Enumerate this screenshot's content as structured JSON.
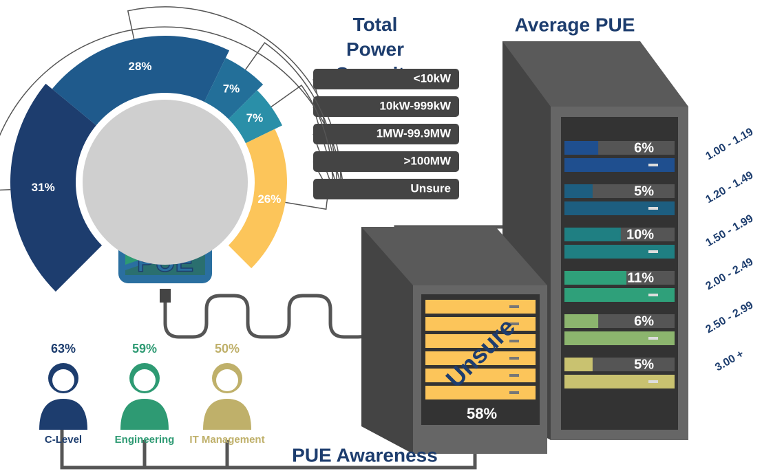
{
  "chart_data": [
    {
      "type": "donut",
      "title": "Total Power Capacity",
      "center_label": "PUE",
      "categories": [
        "<10kW",
        "10kW-999kW",
        "1MW-99.9MW",
        ">100MW",
        "Unsure"
      ],
      "values": [
        31,
        28,
        7,
        7,
        26
      ],
      "value_labels": [
        "31%",
        "28%",
        "7%",
        "7%",
        "26%"
      ],
      "colors": [
        "#1d3d6e",
        "#1f5a8c",
        "#236f99",
        "#2a8fa8",
        "#fcc55a"
      ]
    },
    {
      "type": "rack",
      "title": "Average PUE",
      "categories": [
        "1.00 - 1.19",
        "1.20 - 1.49",
        "1.50 - 1.99",
        "2.00 - 2.49",
        "2.50 - 2.99",
        "3.00 +"
      ],
      "values": [
        6,
        5,
        10,
        11,
        6,
        5
      ],
      "value_labels": [
        "6%",
        "5%",
        "10%",
        "11%",
        "6%",
        "5%"
      ],
      "colors": [
        "#1f4f8f",
        "#1d5e80",
        "#1f7f82",
        "#2fa07a",
        "#8cb56e",
        "#c9c270"
      ],
      "unsure_label": "Unsure",
      "unsure_value": 58,
      "unsure_value_label": "58%",
      "unsure_color": "#fcc55a"
    },
    {
      "type": "icons",
      "title": "PUE Awareness",
      "categories": [
        "C-Level",
        "Engineering",
        "IT Management"
      ],
      "values": [
        63,
        59,
        50
      ],
      "value_labels": [
        "63%",
        "59%",
        "50%"
      ],
      "colors": [
        "#1d3d6e",
        "#2e9a73",
        "#bfb06a"
      ]
    }
  ]
}
